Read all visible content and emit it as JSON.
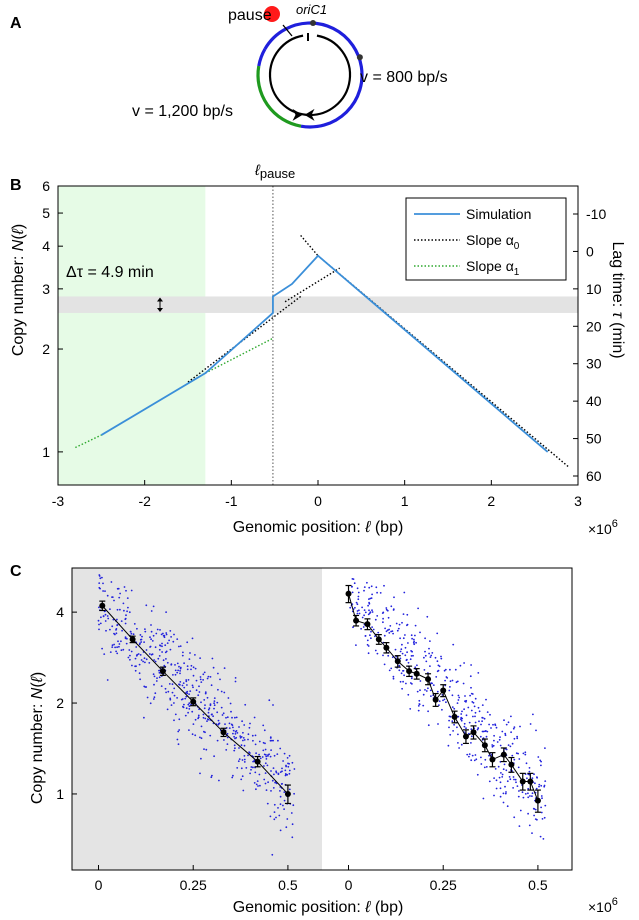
{
  "panel_a": {
    "label": "A",
    "pause_label": "pause",
    "ori_label": "oriC1",
    "v_right": "v = 800 bp/s",
    "v_left": "v = 1,200 bp/s",
    "colors": {
      "pause": "#ff1a1a",
      "fast": "#1f9a1f",
      "slow": "#1f1fdc"
    }
  },
  "panel_b": {
    "label": "B",
    "pause_top_label": "ℓpause",
    "delta_tau_label": "Δτ = 4.9 min",
    "ylabel_left": "Copy number: 𝑁(ℓ)",
    "ylabel_right": "Lag time: 𝜏 (min)",
    "xlabel": "Genomic position: ℓ (bp)",
    "x_multiplier": "×10",
    "x_multiplier_exp": "6",
    "legend": [
      {
        "label": "Simulation",
        "color": "#3b8fd9",
        "style": "solid"
      },
      {
        "label": "Slope  α",
        "sub": "0",
        "color": "#000000",
        "style": "dotted"
      },
      {
        "label": "Slope  α",
        "sub": "1",
        "color": "#2ea82e",
        "style": "dotted"
      }
    ]
  },
  "panel_c": {
    "label": "C",
    "ylabel": "Copy number: 𝑁(ℓ)",
    "xlabel": "Genomic position: ℓ (bp)",
    "x_multiplier": "×10",
    "x_multiplier_exp": "6"
  },
  "chart_data": [
    {
      "type": "line",
      "panel": "B",
      "xlim": [
        -3,
        3
      ],
      "x_scale_factor": 1000000,
      "ylim": [
        0.8,
        6
      ],
      "yscale": "log",
      "y_ticks": [
        1,
        2,
        3,
        4,
        5,
        6
      ],
      "x_ticks": [
        -3,
        -2,
        -1,
        0,
        1,
        2,
        3
      ],
      "right_axis_ticks": [
        -10,
        0,
        10,
        20,
        30,
        40,
        50,
        60
      ],
      "pause_position": -0.52,
      "shaded_x_range": [
        -3,
        -1.3
      ],
      "shaded_y_band": [
        2.55,
        2.85
      ],
      "series": [
        {
          "name": "Simulation",
          "x": [
            -2.5,
            -1.3,
            -0.52,
            -0.52,
            -0.3,
            0,
            2.65
          ],
          "y": [
            1.12,
            1.7,
            2.55,
            2.85,
            3.1,
            3.75,
            1.0
          ]
        },
        {
          "name": "Slope  α0",
          "segments": [
            {
              "x": [
                -1.5,
                -0.2
              ],
              "y": [
                1.6,
                2.85
              ]
            },
            {
              "x": [
                -0.38,
                0.25
              ],
              "y": [
                2.75,
                3.45
              ]
            },
            {
              "x": [
                -0.2,
                0.0
              ],
              "y": [
                4.3,
                3.75
              ]
            },
            {
              "x": [
                0.0,
                2.9
              ],
              "y": [
                3.75,
                0.9
              ]
            }
          ]
        },
        {
          "name": "Slope  α1",
          "segments": [
            {
              "x": [
                -2.8,
                -2.5
              ],
              "y": [
                1.03,
                1.12
              ]
            },
            {
              "x": [
                -1.3,
                -0.52
              ],
              "y": [
                1.7,
                2.15
              ]
            }
          ]
        }
      ]
    },
    {
      "type": "scatter",
      "panel": "C-left",
      "xlim": [
        -0.07,
        0.59
      ],
      "ylim": [
        0.56,
        5.6
      ],
      "yscale": "log",
      "x_ticks": [
        "0",
        "0.25",
        "0.5"
      ],
      "x_tick_values": [
        0,
        0.25,
        0.5
      ],
      "y_ticks": [
        1,
        2,
        4
      ],
      "background": "#e4e4e4",
      "binned_mean": {
        "x": [
          0.01,
          0.09,
          0.17,
          0.25,
          0.33,
          0.42,
          0.5
        ],
        "y": [
          4.2,
          3.25,
          2.55,
          2.02,
          1.6,
          1.28,
          1.0
        ],
        "err": [
          0.15,
          0.08,
          0.08,
          0.06,
          0.05,
          0.05,
          0.07
        ]
      },
      "scatter_model": {
        "y0": 4.2,
        "y1": 1.0,
        "x0": 0.0,
        "x1": 0.52,
        "n_points": 600,
        "log_spread": 0.42
      }
    },
    {
      "type": "scatter",
      "panel": "C-right",
      "xlim": [
        -0.07,
        0.59
      ],
      "ylim": [
        0.56,
        5.6
      ],
      "yscale": "log",
      "x_ticks": [
        "0",
        "0.25",
        "0.5"
      ],
      "x_tick_values": [
        0,
        0.25,
        0.5
      ],
      "binned_mean": {
        "x": [
          0.0,
          0.02,
          0.05,
          0.08,
          0.1,
          0.13,
          0.16,
          0.18,
          0.21,
          0.23,
          0.25,
          0.28,
          0.31,
          0.33,
          0.36,
          0.38,
          0.41,
          0.43,
          0.46,
          0.48,
          0.5
        ],
        "y": [
          4.6,
          3.75,
          3.65,
          3.25,
          3.05,
          2.75,
          2.55,
          2.5,
          2.4,
          2.05,
          2.2,
          1.8,
          1.55,
          1.6,
          1.45,
          1.3,
          1.35,
          1.25,
          1.1,
          1.1,
          0.95
        ],
        "err": [
          0.3,
          0.15,
          0.15,
          0.12,
          0.12,
          0.12,
          0.1,
          0.1,
          0.1,
          0.1,
          0.1,
          0.08,
          0.08,
          0.08,
          0.07,
          0.07,
          0.07,
          0.07,
          0.07,
          0.07,
          0.08
        ]
      },
      "scatter_model": {
        "y0": 4.6,
        "y1": 0.95,
        "x0": 0.0,
        "x1": 0.52,
        "n_points": 520,
        "log_spread": 0.4
      }
    }
  ]
}
